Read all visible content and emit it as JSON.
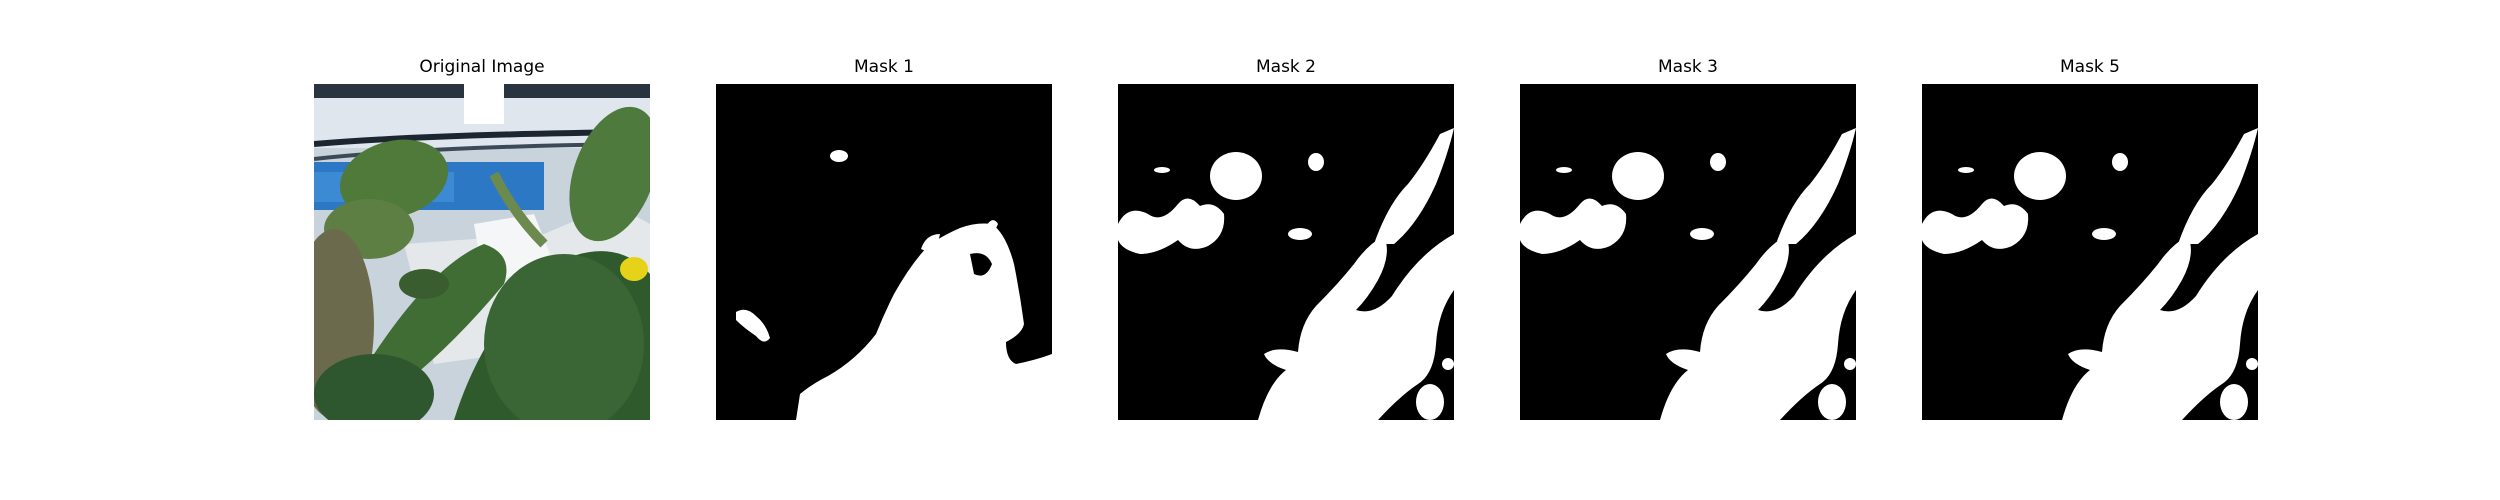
{
  "panels": [
    {
      "title": "Original Image"
    },
    {
      "title": "Mask 1"
    },
    {
      "title": "Mask 2"
    },
    {
      "title": "Mask 3"
    },
    {
      "title": "Mask 5"
    }
  ],
  "colors": {
    "mask_background": "#000000",
    "mask_foreground": "#ffffff",
    "page_background": "#ffffff"
  }
}
